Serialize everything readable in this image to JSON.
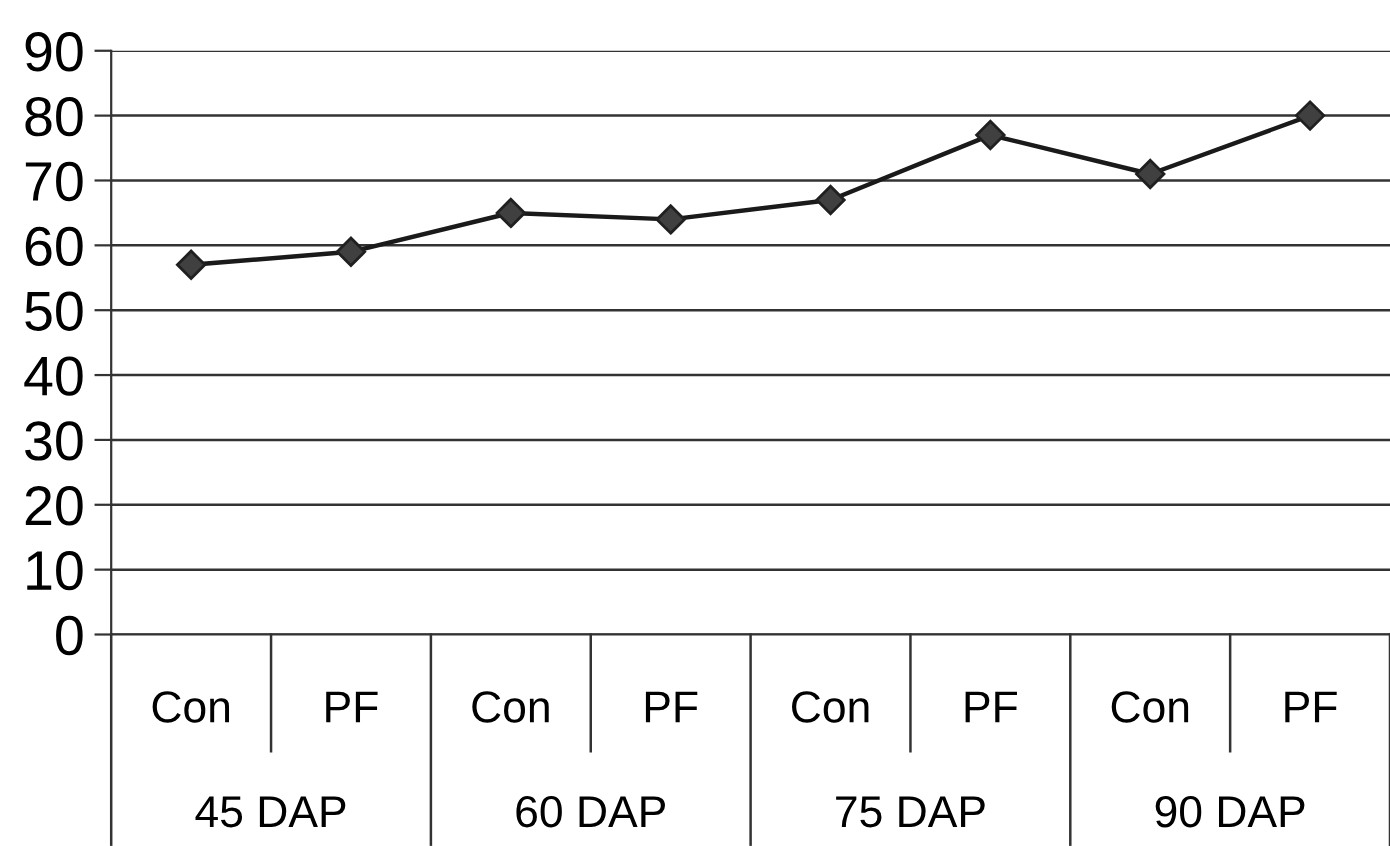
{
  "chart_data": {
    "type": "line",
    "categories": [
      "Con",
      "PF",
      "Con",
      "PF",
      "Con",
      "PF",
      "Con",
      "PF"
    ],
    "series": [
      {
        "color": "#1a1a1a",
        "values": [
          57,
          59,
          65,
          64,
          67,
          77,
          71,
          80
        ]
      }
    ],
    "ylim": [
      0,
      90
    ],
    "yticks": [
      0,
      10,
      20,
      30,
      40,
      50,
      60,
      70,
      80,
      90
    ],
    "grid": "y",
    "marker": "diamond",
    "line_style": "solid",
    "legend": false,
    "annotations": [
      "45 DAP",
      "60 DAP",
      "75 DAP",
      "90 DAP"
    ]
  }
}
